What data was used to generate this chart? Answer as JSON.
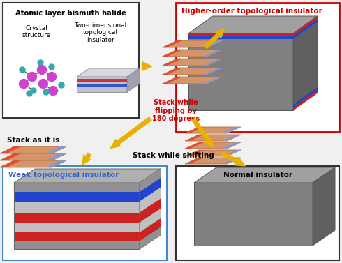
{
  "background_color": "#f0f0f0",
  "top_left_box": {
    "label": "Atomic layer bismuth halide",
    "sublabel1": "Crystal\nstructure",
    "sublabel2": "Two-dimensional\ntopological\ninsulator",
    "box_edgecolor": "#333333",
    "text_color": "#000000"
  },
  "top_right_box": {
    "label": "Higher-order topological insulator",
    "box_edgecolor": "#cc0000",
    "text_color": "#cc0000"
  },
  "bottom_left_box": {
    "label": "Weak topological insulator",
    "box_edgecolor": "#4488cc",
    "text_color": "#3366cc"
  },
  "bottom_right_box": {
    "label": "Normal insulator",
    "box_edgecolor": "#333333",
    "text_color": "#000000"
  },
  "arrow_color": "#e8b000",
  "stack_flip_label": "Stack while\nflipping by\n180 degrees",
  "stack_flip_color": "#cc0000",
  "stack_as_label": "Stack as it is",
  "stack_shift_label": "Stack while shifting",
  "stack_shift_color": "#000000",
  "layer_face_color": "#d4956a",
  "layer_left_color": "#e05030",
  "layer_right_color": "#8899cc",
  "layer_edge_color": "#b07040"
}
